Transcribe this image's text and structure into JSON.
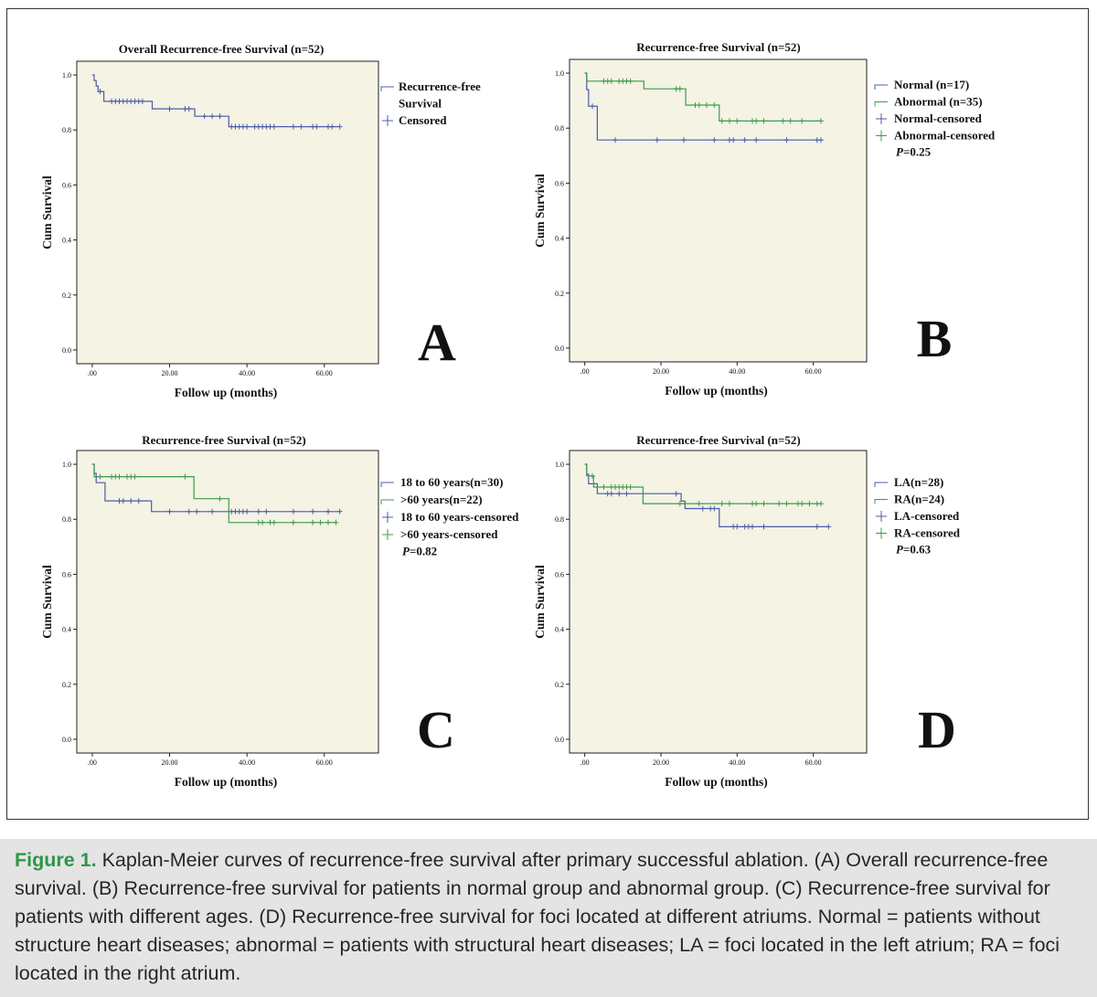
{
  "chart_data": [
    {
      "type": "line",
      "panel_letter": "A",
      "title": "Overall Recurrence-free Survival (n=52)",
      "xlabel": "Follow up (months)",
      "ylabel": "Cum Survival",
      "xticks": [
        ".00",
        "20.00",
        "40.00",
        "60.00"
      ],
      "yticks": [
        "0.0",
        "0.2",
        "0.4",
        "0.6",
        "0.8",
        "1.0"
      ],
      "xlim": [
        -4,
        74
      ],
      "ylim": [
        -0.05,
        1.05
      ],
      "legend": [
        "Recurrence-free",
        "Survival",
        "Censored"
      ],
      "series": [
        {
          "name": "Recurrence-free Survival",
          "color": "#4b5ca8",
          "steps": [
            [
              0,
              1.0
            ],
            [
              0.5,
              0.98
            ],
            [
              1,
              0.96
            ],
            [
              1.5,
              0.94
            ],
            [
              2.5,
              0.94
            ],
            [
              3,
              0.904
            ],
            [
              15,
              0.904
            ],
            [
              15.5,
              0.877
            ],
            [
              26,
              0.877
            ],
            [
              26.5,
              0.85
            ],
            [
              35,
              0.85
            ],
            [
              35.3,
              0.812
            ],
            [
              64,
              0.812
            ]
          ],
          "censored": [
            [
              2,
              0.94
            ],
            [
              5,
              0.904
            ],
            [
              6,
              0.904
            ],
            [
              7,
              0.904
            ],
            [
              8,
              0.904
            ],
            [
              9,
              0.904
            ],
            [
              10,
              0.904
            ],
            [
              11,
              0.904
            ],
            [
              12,
              0.904
            ],
            [
              13,
              0.904
            ],
            [
              20,
              0.877
            ],
            [
              24,
              0.877
            ],
            [
              25,
              0.877
            ],
            [
              29,
              0.85
            ],
            [
              31,
              0.85
            ],
            [
              33,
              0.85
            ],
            [
              36,
              0.812
            ],
            [
              37,
              0.812
            ],
            [
              38,
              0.812
            ],
            [
              39,
              0.812
            ],
            [
              40,
              0.812
            ],
            [
              42,
              0.812
            ],
            [
              43,
              0.812
            ],
            [
              44,
              0.812
            ],
            [
              45,
              0.812
            ],
            [
              46,
              0.812
            ],
            [
              47,
              0.812
            ],
            [
              52,
              0.812
            ],
            [
              54,
              0.812
            ],
            [
              57,
              0.812
            ],
            [
              58,
              0.812
            ],
            [
              61,
              0.812
            ],
            [
              62,
              0.812
            ],
            [
              64,
              0.812
            ]
          ]
        }
      ]
    },
    {
      "type": "line",
      "panel_letter": "B",
      "title": "Recurrence-free Survival (n=52)",
      "xlabel": "Follow up (months)",
      "ylabel": "Cum Survival",
      "xticks": [
        ".00",
        "20.00",
        "40.00",
        "60.00"
      ],
      "yticks": [
        "0.0",
        "0.2",
        "0.4",
        "0.6",
        "0.8",
        "1.0"
      ],
      "xlim": [
        -4,
        74
      ],
      "ylim": [
        -0.05,
        1.05
      ],
      "legend": [
        "Normal (n=17)",
        "Abnormal (n=35)",
        "Normal-censored",
        "Abnormal-censored"
      ],
      "p_label": "P",
      "p_value": "=0.25",
      "series": [
        {
          "name": "Normal (n=17)",
          "color": "#4b5ca8",
          "steps": [
            [
              0,
              1.0
            ],
            [
              0.5,
              0.94
            ],
            [
              1,
              0.88
            ],
            [
              3,
              0.88
            ],
            [
              3.3,
              0.757
            ],
            [
              62,
              0.757
            ]
          ],
          "censored": [
            [
              2,
              0.88
            ],
            [
              8,
              0.757
            ],
            [
              19,
              0.757
            ],
            [
              26,
              0.757
            ],
            [
              34,
              0.757
            ],
            [
              38,
              0.757
            ],
            [
              39,
              0.757
            ],
            [
              42,
              0.757
            ],
            [
              45,
              0.757
            ],
            [
              53,
              0.757
            ],
            [
              61,
              0.757
            ],
            [
              62,
              0.757
            ]
          ]
        },
        {
          "name": "Abnormal (n=35)",
          "color": "#3f9a4e",
          "steps": [
            [
              0,
              1.0
            ],
            [
              0.5,
              0.971
            ],
            [
              15,
              0.971
            ],
            [
              15.5,
              0.943
            ],
            [
              26,
              0.943
            ],
            [
              26.5,
              0.884
            ],
            [
              35,
              0.884
            ],
            [
              35.3,
              0.826
            ],
            [
              62,
              0.826
            ]
          ],
          "censored": [
            [
              5,
              0.971
            ],
            [
              6,
              0.971
            ],
            [
              7,
              0.971
            ],
            [
              9,
              0.971
            ],
            [
              10,
              0.971
            ],
            [
              11,
              0.971
            ],
            [
              12,
              0.971
            ],
            [
              24,
              0.943
            ],
            [
              25,
              0.943
            ],
            [
              29,
              0.884
            ],
            [
              30,
              0.884
            ],
            [
              32,
              0.884
            ],
            [
              34,
              0.884
            ],
            [
              36,
              0.826
            ],
            [
              38,
              0.826
            ],
            [
              40,
              0.826
            ],
            [
              44,
              0.826
            ],
            [
              45,
              0.826
            ],
            [
              47,
              0.826
            ],
            [
              52,
              0.826
            ],
            [
              54,
              0.826
            ],
            [
              57,
              0.826
            ],
            [
              62,
              0.826
            ]
          ]
        }
      ]
    },
    {
      "type": "line",
      "panel_letter": "C",
      "title": "Recurrence-free Survival (n=52)",
      "xlabel": "Follow up (months)",
      "ylabel": "Cum Survival",
      "xticks": [
        ".00",
        "20.00",
        "40.00",
        "60.00"
      ],
      "yticks": [
        "0.0",
        "0.2",
        "0.4",
        "0.6",
        "0.8",
        "1.0"
      ],
      "xlim": [
        -4,
        74
      ],
      "ylim": [
        -0.05,
        1.05
      ],
      "legend": [
        "18 to 60 years(n=30)",
        ">60 years(n=22)",
        "18 to 60 years-censored",
        ">60 years-censored"
      ],
      "p_label": "P",
      "p_value": "=0.82",
      "series": [
        {
          "name": "18 to 60 years(n=30)",
          "color": "#4b5ca8",
          "steps": [
            [
              0,
              1.0
            ],
            [
              0.5,
              0.967
            ],
            [
              1,
              0.933
            ],
            [
              3,
              0.933
            ],
            [
              3.3,
              0.867
            ],
            [
              15,
              0.867
            ],
            [
              15.3,
              0.828
            ],
            [
              64,
              0.828
            ]
          ],
          "censored": [
            [
              7,
              0.867
            ],
            [
              8,
              0.867
            ],
            [
              10,
              0.867
            ],
            [
              12,
              0.867
            ],
            [
              20,
              0.828
            ],
            [
              25,
              0.828
            ],
            [
              27,
              0.828
            ],
            [
              31,
              0.828
            ],
            [
              36,
              0.828
            ],
            [
              37,
              0.828
            ],
            [
              38,
              0.828
            ],
            [
              39,
              0.828
            ],
            [
              40,
              0.828
            ],
            [
              43,
              0.828
            ],
            [
              45,
              0.828
            ],
            [
              52,
              0.828
            ],
            [
              57,
              0.828
            ],
            [
              61,
              0.828
            ],
            [
              64,
              0.828
            ]
          ]
        },
        {
          "name": ">60 years(n=22)",
          "color": "#3f9a4e",
          "steps": [
            [
              0,
              1.0
            ],
            [
              0.5,
              0.955
            ],
            [
              26,
              0.955
            ],
            [
              26.3,
              0.875
            ],
            [
              35,
              0.875
            ],
            [
              35.3,
              0.788
            ],
            [
              63,
              0.788
            ]
          ],
          "censored": [
            [
              2,
              0.955
            ],
            [
              5,
              0.955
            ],
            [
              6,
              0.955
            ],
            [
              7,
              0.955
            ],
            [
              9,
              0.955
            ],
            [
              10,
              0.955
            ],
            [
              11,
              0.955
            ],
            [
              24,
              0.955
            ],
            [
              33,
              0.875
            ],
            [
              43,
              0.788
            ],
            [
              44,
              0.788
            ],
            [
              46,
              0.788
            ],
            [
              47,
              0.788
            ],
            [
              52,
              0.788
            ],
            [
              57,
              0.788
            ],
            [
              59,
              0.788
            ],
            [
              61,
              0.788
            ],
            [
              63,
              0.788
            ]
          ]
        }
      ]
    },
    {
      "type": "line",
      "panel_letter": "D",
      "title": "Recurrence-free Survival (n=52)",
      "xlabel": "Follow up (months)",
      "ylabel": "Cum Survival",
      "xticks": [
        ".00",
        "20.00",
        "40.00",
        "60.00"
      ],
      "yticks": [
        "0.0",
        "0.2",
        "0.4",
        "0.6",
        "0.8",
        "1.0"
      ],
      "xlim": [
        -4,
        74
      ],
      "ylim": [
        -0.05,
        1.05
      ],
      "legend": [
        "LA(n=28)",
        "RA(n=24)",
        "LA-censored",
        "RA-censored"
      ],
      "p_label": "P",
      "p_value": "=0.63",
      "series": [
        {
          "name": "LA(n=28)",
          "color": "#4b5ca8",
          "steps": [
            [
              0,
              1.0
            ],
            [
              0.5,
              0.964
            ],
            [
              1,
              0.929
            ],
            [
              3,
              0.929
            ],
            [
              3.3,
              0.893
            ],
            [
              25,
              0.893
            ],
            [
              25.3,
              0.866
            ],
            [
              26,
              0.866
            ],
            [
              26.3,
              0.839
            ],
            [
              35,
              0.839
            ],
            [
              35.3,
              0.773
            ],
            [
              64,
              0.773
            ]
          ],
          "censored": [
            [
              6,
              0.893
            ],
            [
              7,
              0.893
            ],
            [
              9,
              0.893
            ],
            [
              11,
              0.893
            ],
            [
              24,
              0.893
            ],
            [
              31,
              0.839
            ],
            [
              33,
              0.839
            ],
            [
              34,
              0.839
            ],
            [
              39,
              0.773
            ],
            [
              40,
              0.773
            ],
            [
              42,
              0.773
            ],
            [
              43,
              0.773
            ],
            [
              44,
              0.773
            ],
            [
              47,
              0.773
            ],
            [
              61,
              0.773
            ],
            [
              64,
              0.773
            ]
          ]
        },
        {
          "name": "RA(n=24)",
          "color": "#3f9a4e",
          "steps": [
            [
              0,
              1.0
            ],
            [
              0.5,
              0.958
            ],
            [
              2,
              0.958
            ],
            [
              2.3,
              0.917
            ],
            [
              15,
              0.917
            ],
            [
              15.3,
              0.857
            ],
            [
              62,
              0.857
            ]
          ],
          "censored": [
            [
              2,
              0.958
            ],
            [
              5,
              0.917
            ],
            [
              7,
              0.917
            ],
            [
              8,
              0.917
            ],
            [
              9,
              0.917
            ],
            [
              10,
              0.917
            ],
            [
              11,
              0.917
            ],
            [
              12,
              0.917
            ],
            [
              25,
              0.857
            ],
            [
              30,
              0.857
            ],
            [
              36,
              0.857
            ],
            [
              38,
              0.857
            ],
            [
              44,
              0.857
            ],
            [
              45,
              0.857
            ],
            [
              47,
              0.857
            ],
            [
              51,
              0.857
            ],
            [
              53,
              0.857
            ],
            [
              56,
              0.857
            ],
            [
              57,
              0.857
            ],
            [
              59,
              0.857
            ],
            [
              61,
              0.857
            ],
            [
              62,
              0.857
            ]
          ]
        }
      ]
    }
  ],
  "caption": {
    "label": "Figure 1.",
    "text": " Kaplan-Meier curves of recurrence-free survival after primary successful ablation. (A) Overall recurrence-free survival. (B) Recurrence-free survival for patients in normal group and abnormal group. (C) Recurrence-free survival for patients with different ages. (D) Recurrence-free survival for foci located at different atriums. Normal = patients without structure heart diseases; abnormal = patients with structural heart diseases; LA = foci located in the left atrium; RA = foci located in the right atrium."
  },
  "colors": {
    "caption_label": "#2e9648",
    "caption_bg": "#e4e4e4",
    "plot_bg": "#f4f3e4"
  }
}
